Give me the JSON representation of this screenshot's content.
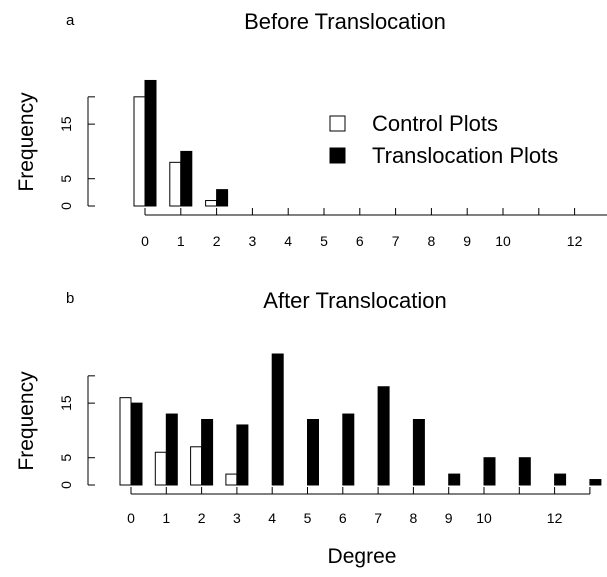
{
  "chart_data": [
    {
      "type": "bar",
      "panel_label": "a",
      "title": "Before Translocation",
      "xlabel": "",
      "ylabel": "Frequency",
      "categories": [
        "0",
        "1",
        "2",
        "3",
        "4",
        "5",
        "6",
        "7",
        "8",
        "9",
        "10",
        "11",
        "12",
        "13"
      ],
      "x_tick_labels": [
        "0",
        "1",
        "2",
        "3",
        "4",
        "5",
        "6",
        "7",
        "8",
        "9",
        "10",
        "",
        "12",
        ""
      ],
      "y_ticks": [
        "0",
        "5",
        "15"
      ],
      "ylim": [
        0,
        24
      ],
      "grid": false,
      "series": [
        {
          "name": "Control Plots",
          "color": "#ffffff",
          "values": [
            20,
            8,
            1,
            0,
            0,
            0,
            0,
            0,
            0,
            0,
            0,
            0,
            0,
            0
          ]
        },
        {
          "name": "Translocation Plots",
          "color": "#000000",
          "values": [
            23,
            10,
            3,
            0,
            0,
            0,
            0,
            0,
            0,
            0,
            0,
            0,
            0,
            0
          ]
        }
      ],
      "legend": {
        "position": "top-right"
      }
    },
    {
      "type": "bar",
      "panel_label": "b",
      "title": "After Translocation",
      "xlabel": "Degree",
      "ylabel": "Frequency",
      "categories": [
        "0",
        "1",
        "2",
        "3",
        "4",
        "5",
        "6",
        "7",
        "8",
        "9",
        "10",
        "11",
        "12",
        "13"
      ],
      "x_tick_labels": [
        "0",
        "1",
        "2",
        "3",
        "4",
        "5",
        "6",
        "7",
        "8",
        "9",
        "10",
        "",
        "12",
        ""
      ],
      "y_ticks": [
        "0",
        "5",
        "15"
      ],
      "ylim": [
        0,
        24
      ],
      "grid": false,
      "series": [
        {
          "name": "Control Plots",
          "color": "#ffffff",
          "values": [
            16,
            6,
            7,
            2,
            0,
            0,
            0,
            0,
            0,
            0,
            0,
            0,
            0,
            0
          ]
        },
        {
          "name": "Translocation Plots",
          "color": "#000000",
          "values": [
            15,
            13,
            12,
            11,
            24,
            12,
            13,
            18,
            12,
            2,
            5,
            5,
            2,
            1
          ]
        }
      ]
    }
  ]
}
